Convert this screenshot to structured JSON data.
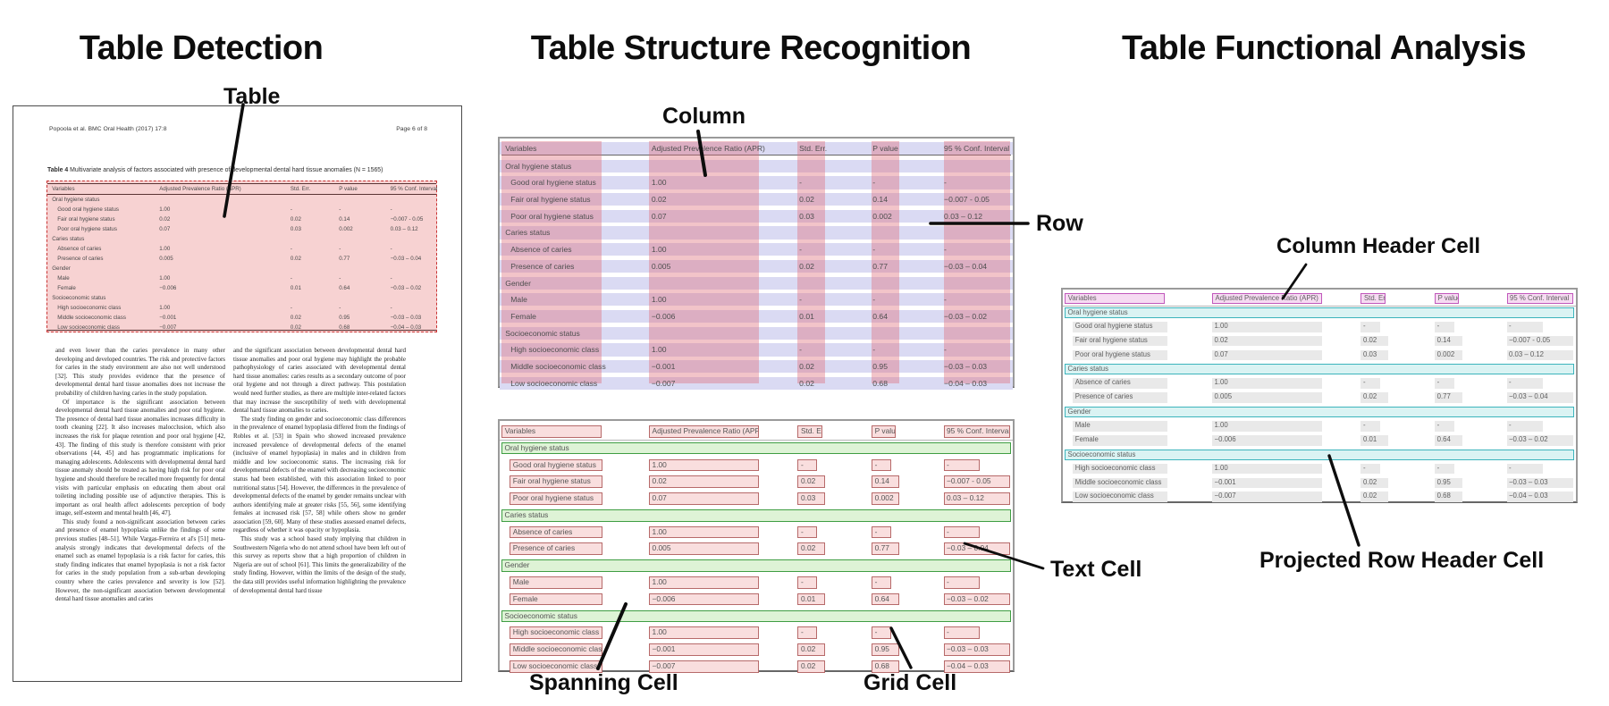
{
  "titles": {
    "detection": "Table Detection",
    "structure": "Table Structure Recognition",
    "functional": "Table Functional Analysis"
  },
  "callouts": {
    "table": "Table",
    "column": "Column",
    "row": "Row",
    "spanning_cell": "Spanning Cell",
    "grid_cell": "Grid Cell",
    "text_cell": "Text Cell",
    "column_header_cell": "Column Header Cell",
    "projected_row_header_cell": "Projected Row Header Cell"
  },
  "document": {
    "header_left": "Popoola et al. BMC Oral Health  (2017) 17:8",
    "header_right": "Page 6 of 8",
    "table_caption_label": "Table 4",
    "table_caption": " Multivariate analysis of factors associated with presence of developmental dental hard tissue anomalies (N = 1565)",
    "body_columns": [
      [
        "and even lower than the caries prevalence in many other developing and developed countries. The risk and protective factors for caries in the study environment are also not well understood [32]. This study provides evidence that the presence of developmental dental hard tissue anomalies does not increase the probability of children having caries in the study population.",
        "Of importance is the significant association between developmental dental hard tissue anomalies and poor oral hygiene. The presence of dental hard tissue anomalies increases difficulty in tooth cleaning [22]. It also increases malocclusion, which also increases the risk for plaque retention and poor oral hygiene [42, 43]. The finding of this study is therefore consistent with prior observations [44, 45] and has programmatic implications for managing adolescents. Adolescents with developmental dental hard tissue anomaly should be treated as having high risk for poor oral hygiene and should therefore be recalled more frequently for dental visits with particular emphasis on educating them about oral toileting including possible use of adjunctive therapies. This is important as oral health affect adolescents perception of body image, self-esteem and mental health [46, 47].",
        "This study found a non-significant association between caries and presence of enamel hypoplasia unlike the findings of some previous studies [48–51]. While Vargas-Ferreira et al's [51] meta-analysis strongly indicates that developmental defects of the enamel such as enamel hypoplasia is a risk factor for caries, this study finding indicates that enamel hypoplasia is not a risk factor for caries in the study population from a sub-urban developing country where the caries prevalence and severity is low [52]. However, the non-significant association between developmental dental hard tissue anomalies and caries"
      ],
      [
        "and the significant association between developmental dental hard tissue anomalies and poor oral hygiene may highlight the probable pathophysiology of caries associated with developmental dental hard tissue anomalies: caries results as a secondary outcome of poor oral hygiene and not through a direct pathway. This postulation would need further studies, as there are multiple inter-related factors that may increase the susceptibility of teeth with developmental dental hard tissue anomalies to caries.",
        "The study finding on gender and socioeconomic class differences in the prevalence of enamel hypoplasia differed from the findings of Robles et al. [53] in Spain who showed increased prevalence increased prevalence of developmental defects of the enamel (inclusive of enamel hypoplasia) in males and in children from middle and low socioeconomic status. The increasing risk for developmental defects of the enamel with decreasing socioeconomic status had been established, with this association linked to poor nutritional status [54]. However, the differences in the prevalence of developmental defects of the enamel by gender remains unclear with authors identifying male at greater risks [55, 56], some identifying females at increased risk [57, 58] while others show no gender association [59, 60]. Many of these studies assessed enamel defects, regardless of whether it was opacity or hypoplasia.",
        "This study was a school based study implying that children in Southwestern Nigeria who do not attend school have been left out of this survey as reports show that a high proportion of children in Nigeria are out of school [61]. This limits the generalizability of the study finding. However, within the limits of the design of the study, the data still provides useful information highlighting the prevalence of developmental dental hard tissue"
      ]
    ]
  },
  "table": {
    "headers": [
      "Variables",
      "Adjusted Prevalence Ratio (APR)",
      "Std. Err.",
      "P value",
      "95 % Conf. Interval"
    ],
    "rows": [
      {
        "type": "section",
        "label": "Oral hygiene status"
      },
      {
        "type": "data",
        "cells": [
          "Good oral hygiene status",
          "1.00",
          "-",
          "-",
          "-"
        ]
      },
      {
        "type": "data",
        "cells": [
          "Fair oral hygiene status",
          "0.02",
          "0.02",
          "0.14",
          "−0.007 - 0.05"
        ]
      },
      {
        "type": "data",
        "cells": [
          "Poor oral hygiene status",
          "0.07",
          "0.03",
          "0.002",
          "0.03 – 0.12"
        ]
      },
      {
        "type": "section",
        "label": "Caries status"
      },
      {
        "type": "data",
        "cells": [
          "Absence of caries",
          "1.00",
          "-",
          "-",
          "-"
        ]
      },
      {
        "type": "data",
        "cells": [
          "Presence of caries",
          "0.005",
          "0.02",
          "0.77",
          "−0.03 – 0.04"
        ]
      },
      {
        "type": "section",
        "label": "Gender"
      },
      {
        "type": "data",
        "cells": [
          "Male",
          "1.00",
          "-",
          "-",
          "-"
        ]
      },
      {
        "type": "data",
        "cells": [
          "Female",
          "−0.006",
          "0.01",
          "0.64",
          "−0.03 – 0.02"
        ]
      },
      {
        "type": "section",
        "label": "Socioeconomic status"
      },
      {
        "type": "data",
        "cells": [
          "High socioeconomic class",
          "1.00",
          "-",
          "-",
          "-"
        ]
      },
      {
        "type": "data",
        "cells": [
          "Middle socioeconomic class",
          "−0.001",
          "0.02",
          "0.95",
          "−0.03 – 0.03"
        ]
      },
      {
        "type": "data",
        "cells": [
          "Low socioeconomic class",
          "−0.007",
          "0.02",
          "0.68",
          "−0.04 – 0.03"
        ]
      }
    ]
  },
  "colors": {
    "detection_border": "#c93434",
    "detection_fill": "#f0a6a6",
    "row_band": "#dadaf3",
    "column_band": "rgba(223,108,120,0.40)",
    "grid_cell_fill": "#f9dede",
    "grid_cell_border": "#b76a6a",
    "spanning_fill": "#def3d6",
    "spanning_border": "#3f9e43",
    "column_header_fill": "#f6dbf2",
    "column_header_border": "#c158bc",
    "projected_fill": "#daf3f3",
    "projected_border": "#3cb4bc",
    "text_cell_fill": "#e9e9e9"
  }
}
